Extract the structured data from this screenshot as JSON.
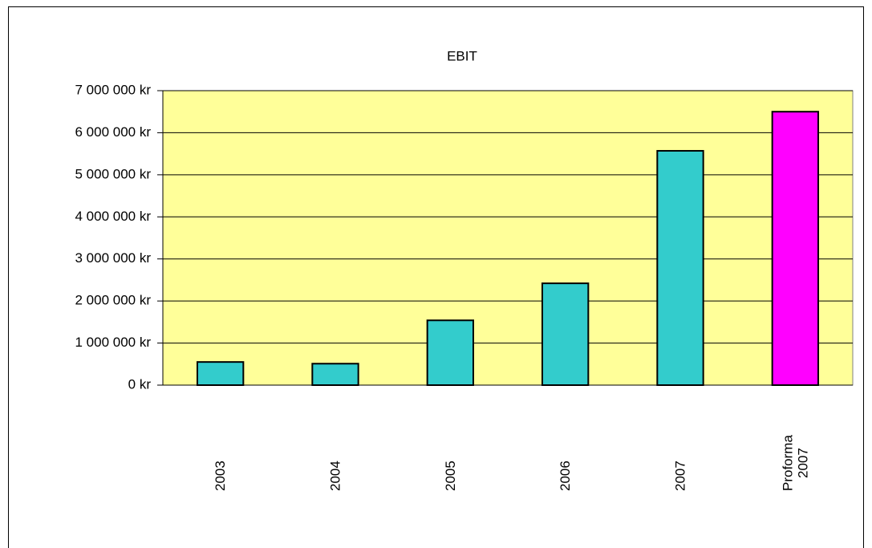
{
  "chart_data": {
    "type": "bar",
    "title": "EBIT",
    "categories": [
      "2003",
      "2004",
      "2005",
      "2006",
      "2007",
      "Proforma\n2007"
    ],
    "values": [
      550000,
      510000,
      1540000,
      2420000,
      5570000,
      6500000
    ],
    "colors": [
      "#33cccc",
      "#33cccc",
      "#33cccc",
      "#33cccc",
      "#33cccc",
      "#ff00ff"
    ],
    "plot_background": "#ffff99",
    "ylim": [
      0,
      7000000
    ],
    "yticks": [
      {
        "value": 0,
        "label": "0 kr"
      },
      {
        "value": 1000000,
        "label": "1 000 000 kr"
      },
      {
        "value": 2000000,
        "label": "2 000 000 kr"
      },
      {
        "value": 3000000,
        "label": "3 000 000 kr"
      },
      {
        "value": 4000000,
        "label": "4 000 000 kr"
      },
      {
        "value": 5000000,
        "label": "5 000 000 kr"
      },
      {
        "value": 6000000,
        "label": "6 000 000 kr"
      },
      {
        "value": 7000000,
        "label": "7 000 000 kr"
      }
    ],
    "grid": true
  }
}
